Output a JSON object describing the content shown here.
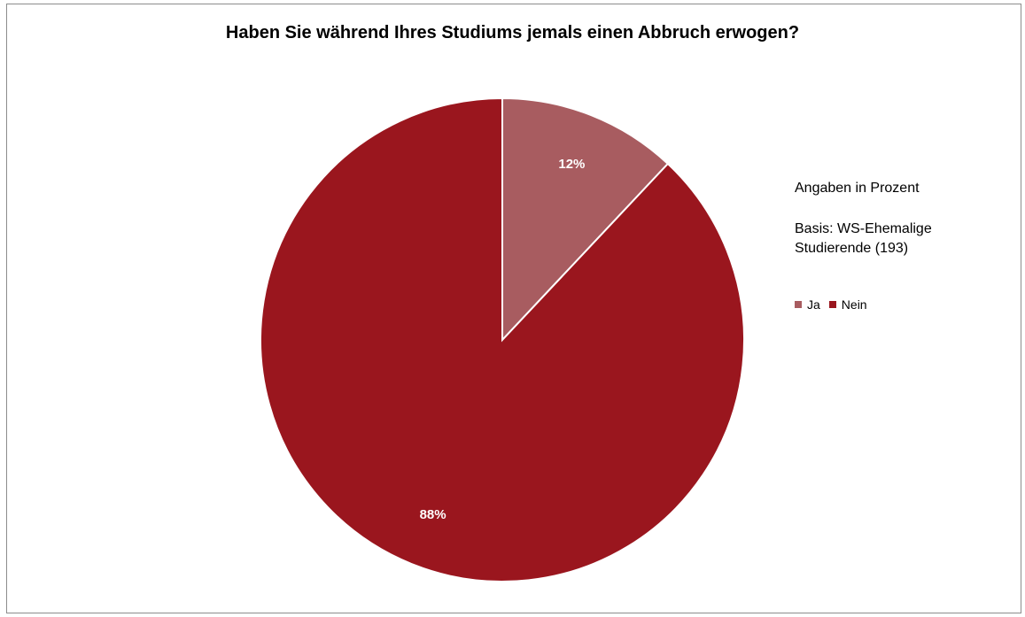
{
  "chart_data": {
    "type": "pie",
    "title": "Haben Sie während Ihres Studiums jemals einen Abbruch erwogen?",
    "categories": [
      "Ja",
      "Nein"
    ],
    "values": [
      12,
      88
    ],
    "data_labels": [
      "12%",
      "88%"
    ],
    "colors": [
      "#a85c60",
      "#9a161e"
    ],
    "legend_position": "right",
    "notes": {
      "unit": "Angaben in Prozent",
      "basis": "Basis: WS-Ehemalige Studierende (193)"
    }
  }
}
